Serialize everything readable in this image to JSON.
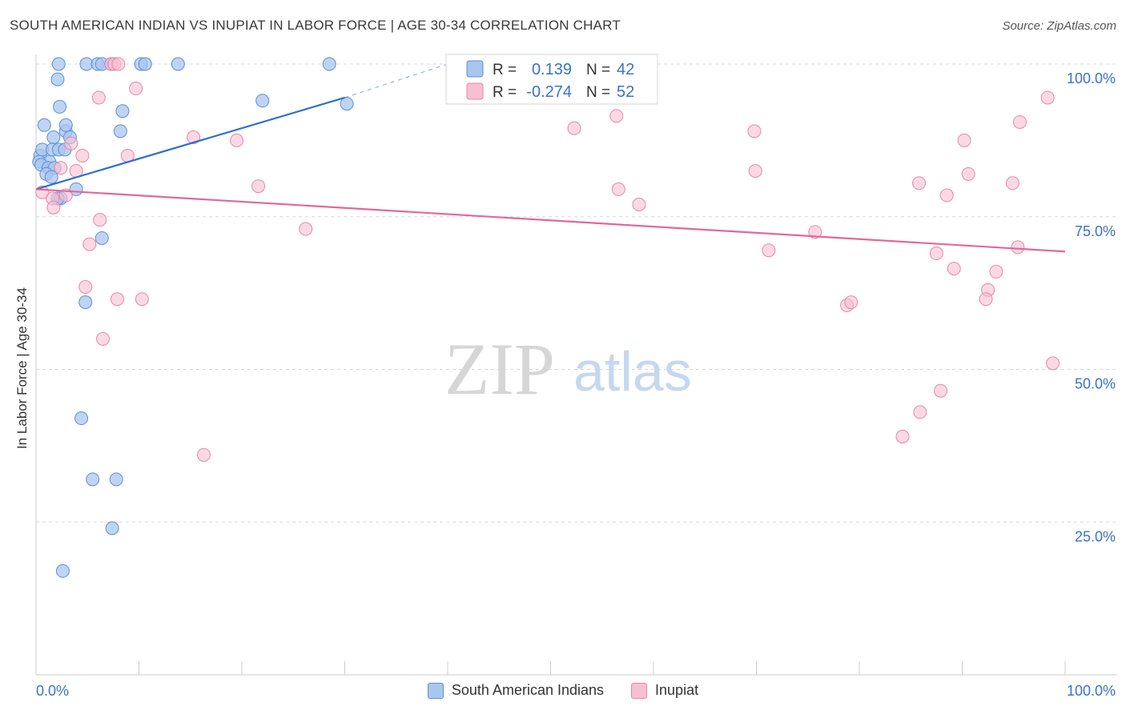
{
  "header": {
    "title": "SOUTH AMERICAN INDIAN VS INUPIAT IN LABOR FORCE | AGE 30-34 CORRELATION CHART",
    "source": "Source: ZipAtlas.com"
  },
  "colors": {
    "blue": "#5b8fd6",
    "blue_fill": "#a9c6ef",
    "blue_line": "#2f6fce",
    "pink": "#e886a6",
    "pink_fill": "#f7c0d2",
    "pink_line": "#e0699a",
    "tick_label": "#3d72c4",
    "grid": "#d8d8d8",
    "watermark_zip": "#d6d6d6",
    "watermark_atlas": "#c5d8ef"
  },
  "watermark": {
    "zip": "ZIP",
    "atlas": "atlas"
  },
  "chart_data": {
    "type": "scatter",
    "xlabel": "",
    "ylabel": "In Labor Force | Age 30-34",
    "xlim": [
      0,
      100
    ],
    "ylim": [
      0,
      102
    ],
    "x_tick_labels": {
      "min": "0.0%",
      "max": "100.0%"
    },
    "y_ticks": [
      25,
      50,
      75,
      100
    ],
    "y_tick_labels": [
      "25.0%",
      "50.0%",
      "75.0%",
      "100.0%"
    ],
    "legend": {
      "position": "top-center",
      "rows": [
        {
          "r_label": "R =",
          "r_value": "0.139",
          "n_label": "N =",
          "n_value": "42"
        },
        {
          "r_label": "R =",
          "r_value": "-0.274",
          "n_label": "N =",
          "n_value": "52"
        }
      ]
    },
    "series": [
      {
        "name": "South American Indians",
        "points": [
          [
            2.2,
            100
          ],
          [
            4.9,
            100
          ],
          [
            6,
            100
          ],
          [
            6.4,
            100
          ],
          [
            7.3,
            100
          ],
          [
            10.2,
            100
          ],
          [
            10.6,
            100
          ],
          [
            13.8,
            100
          ],
          [
            2.1,
            97.5
          ],
          [
            0.8,
            90
          ],
          [
            2.3,
            93
          ],
          [
            2.9,
            89
          ],
          [
            2.9,
            90
          ],
          [
            3.3,
            88
          ],
          [
            1.7,
            88
          ],
          [
            8.2,
            89
          ],
          [
            8.4,
            92.3
          ],
          [
            0.4,
            85
          ],
          [
            0.6,
            86
          ],
          [
            1.6,
            86
          ],
          [
            2.2,
            86
          ],
          [
            2.8,
            86
          ],
          [
            0.3,
            84
          ],
          [
            1.3,
            84
          ],
          [
            0.5,
            83.5
          ],
          [
            1.2,
            83
          ],
          [
            1.8,
            83
          ],
          [
            1.0,
            82
          ],
          [
            1.5,
            81.5
          ],
          [
            3.9,
            79.5
          ],
          [
            2.4,
            78
          ],
          [
            2.1,
            78
          ],
          [
            6.4,
            71.5
          ],
          [
            4.8,
            61
          ],
          [
            4.4,
            42
          ],
          [
            5.5,
            32
          ],
          [
            7.8,
            32
          ],
          [
            7.4,
            24
          ],
          [
            2.6,
            17
          ],
          [
            22,
            94
          ],
          [
            30.2,
            93.5
          ],
          [
            28.5,
            100
          ]
        ],
        "trend": {
          "x0": 0,
          "y0": 79.5,
          "x1": 30,
          "y1": 94.5,
          "dash_to_x": 40,
          "dash_to_y": 100
        }
      },
      {
        "name": "Inupiat",
        "points": [
          [
            7.3,
            100
          ],
          [
            7.6,
            100
          ],
          [
            8.0,
            100
          ],
          [
            9.7,
            96
          ],
          [
            6.1,
            94.5
          ],
          [
            15.3,
            88
          ],
          [
            19.5,
            87.5
          ],
          [
            8.9,
            85
          ],
          [
            3.4,
            87
          ],
          [
            4.5,
            85
          ],
          [
            3.9,
            82.5
          ],
          [
            2.4,
            83
          ],
          [
            0.6,
            79
          ],
          [
            1.6,
            78
          ],
          [
            2.9,
            78.5
          ],
          [
            1.7,
            76.5
          ],
          [
            21.6,
            80
          ],
          [
            6.2,
            74.5
          ],
          [
            5.2,
            70.5
          ],
          [
            26.2,
            73
          ],
          [
            4.8,
            63.5
          ],
          [
            7.9,
            61.5
          ],
          [
            10.3,
            61.5
          ],
          [
            6.5,
            55
          ],
          [
            16.3,
            36
          ],
          [
            52.3,
            89.5
          ],
          [
            56.4,
            91.5
          ],
          [
            56.6,
            79.5
          ],
          [
            58.6,
            77
          ],
          [
            69.8,
            89
          ],
          [
            69.9,
            82.5
          ],
          [
            71.2,
            69.5
          ],
          [
            75.7,
            72.5
          ],
          [
            78.8,
            60.5
          ],
          [
            79.2,
            61
          ],
          [
            85.8,
            80.5
          ],
          [
            87.5,
            69
          ],
          [
            88.5,
            78.5
          ],
          [
            89.2,
            66.5
          ],
          [
            90.2,
            87.5
          ],
          [
            90.6,
            82
          ],
          [
            92.5,
            63
          ],
          [
            92.3,
            61.5
          ],
          [
            93.3,
            66
          ],
          [
            94.9,
            80.5
          ],
          [
            95.6,
            90.5
          ],
          [
            95.4,
            70
          ],
          [
            98.3,
            94.5
          ],
          [
            98.8,
            51
          ],
          [
            84.2,
            39
          ],
          [
            85.9,
            43
          ],
          [
            87.9,
            46.5
          ]
        ],
        "trend": {
          "x0": 0,
          "y0": 79.5,
          "x1": 100,
          "y1": 69.3
        }
      }
    ]
  }
}
